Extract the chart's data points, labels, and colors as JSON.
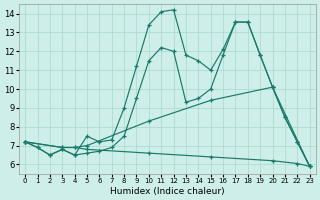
{
  "xlabel": "Humidex (Indice chaleur)",
  "bg_color": "#cdeee9",
  "grid_color": "#aad8cc",
  "line_color": "#1a7a6a",
  "xlim": [
    -0.5,
    23.5
  ],
  "ylim": [
    5.5,
    14.5
  ],
  "xticks": [
    0,
    1,
    2,
    3,
    4,
    5,
    6,
    7,
    8,
    9,
    10,
    11,
    12,
    13,
    14,
    15,
    16,
    17,
    18,
    19,
    20,
    21,
    22,
    23
  ],
  "yticks": [
    6,
    7,
    8,
    9,
    10,
    11,
    12,
    13,
    14
  ],
  "series": [
    {
      "x": [
        0,
        1,
        2,
        3,
        4,
        5,
        6,
        7,
        8,
        9,
        10,
        11,
        12,
        13,
        14,
        15,
        16,
        17,
        18,
        19,
        20,
        21,
        22,
        23
      ],
      "y": [
        7.2,
        6.9,
        6.5,
        6.8,
        6.5,
        7.5,
        7.2,
        7.3,
        9.0,
        11.2,
        13.4,
        14.1,
        14.2,
        11.8,
        11.5,
        11.0,
        12.1,
        13.55,
        13.55,
        11.8,
        10.1,
        8.5,
        7.2,
        5.9
      ]
    },
    {
      "x": [
        0,
        1,
        2,
        3,
        4,
        5,
        6,
        7,
        8,
        9,
        10,
        11,
        12,
        13,
        14,
        15,
        16,
        17,
        18,
        19,
        20,
        21,
        22,
        23
      ],
      "y": [
        7.2,
        6.9,
        6.5,
        6.8,
        6.5,
        6.6,
        6.7,
        6.9,
        7.5,
        9.5,
        11.5,
        12.2,
        12.0,
        9.3,
        9.5,
        10.0,
        11.8,
        13.55,
        13.55,
        11.8,
        10.1,
        8.5,
        7.2,
        5.9
      ]
    },
    {
      "x": [
        0,
        3,
        4,
        5,
        10,
        15,
        20,
        23
      ],
      "y": [
        7.2,
        6.9,
        6.9,
        7.0,
        8.3,
        9.4,
        10.1,
        5.9
      ]
    },
    {
      "x": [
        0,
        3,
        4,
        5,
        10,
        15,
        20,
        22,
        23
      ],
      "y": [
        7.2,
        6.9,
        6.9,
        6.8,
        6.6,
        6.4,
        6.2,
        6.05,
        5.9
      ]
    }
  ]
}
